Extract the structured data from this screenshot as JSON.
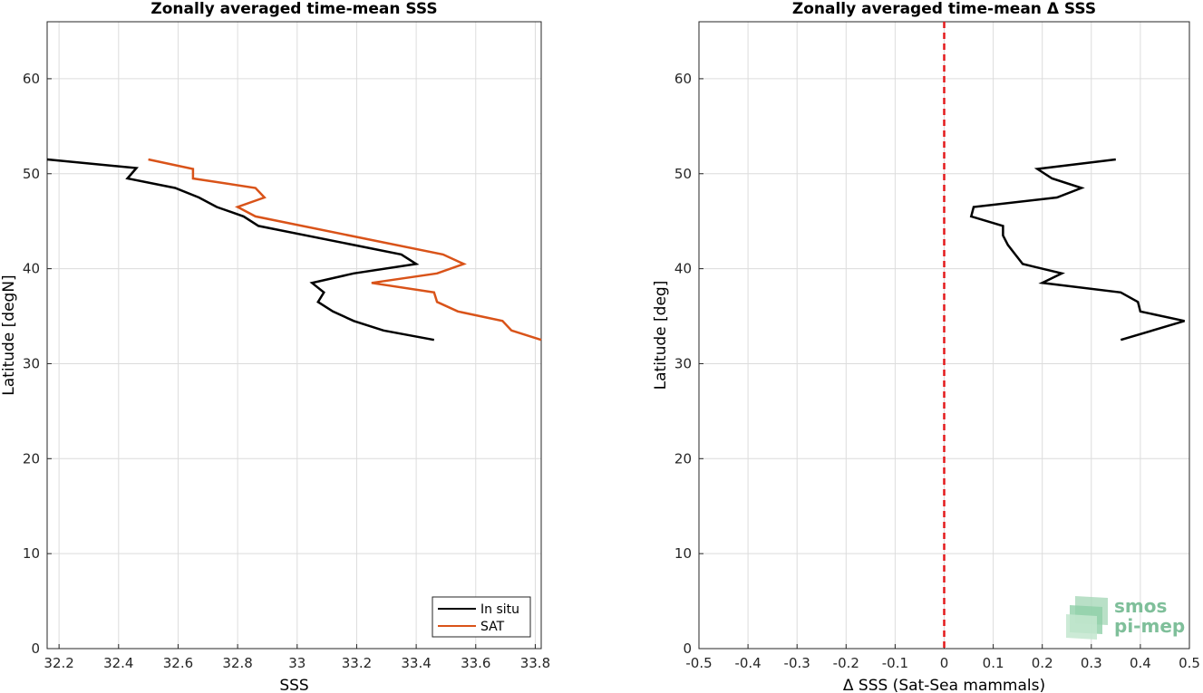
{
  "chart_data": [
    {
      "type": "line",
      "title": "Zonally averaged time-mean SSS",
      "xlabel": "SSS",
      "ylabel": "Latitude [degN]",
      "xlim": [
        32.16,
        33.82
      ],
      "ylim": [
        0,
        66
      ],
      "xticks": [
        32.2,
        32.4,
        32.6,
        32.8,
        33,
        33.2,
        33.4,
        33.6,
        33.8
      ],
      "yticks": [
        0,
        10,
        20,
        30,
        40,
        50,
        60
      ],
      "grid": true,
      "legend_position": "bottom-right",
      "series": [
        {
          "name": "In situ",
          "color": "#000000",
          "points": [
            [
              32.16,
              51.5
            ],
            [
              32.46,
              50.6
            ],
            [
              32.43,
              49.5
            ],
            [
              32.59,
              48.5
            ],
            [
              32.67,
              47.5
            ],
            [
              32.73,
              46.5
            ],
            [
              32.82,
              45.5
            ],
            [
              32.87,
              44.5
            ],
            [
              33.35,
              41.5
            ],
            [
              33.4,
              40.5
            ],
            [
              33.19,
              39.5
            ],
            [
              33.05,
              38.5
            ],
            [
              33.09,
              37.5
            ],
            [
              33.07,
              36.5
            ],
            [
              33.12,
              35.5
            ],
            [
              33.19,
              34.5
            ],
            [
              33.29,
              33.5
            ],
            [
              33.46,
              32.5
            ]
          ]
        },
        {
          "name": "SAT",
          "color": "#d95319",
          "points": [
            [
              32.5,
              51.5
            ],
            [
              32.65,
              50.5
            ],
            [
              32.65,
              49.5
            ],
            [
              32.86,
              48.5
            ],
            [
              32.89,
              47.5
            ],
            [
              32.8,
              46.5
            ],
            [
              32.86,
              45.5
            ],
            [
              33.49,
              41.5
            ],
            [
              33.56,
              40.5
            ],
            [
              33.47,
              39.5
            ],
            [
              33.25,
              38.5
            ],
            [
              33.46,
              37.5
            ],
            [
              33.47,
              36.5
            ],
            [
              33.54,
              35.5
            ],
            [
              33.69,
              34.5
            ],
            [
              33.72,
              33.5
            ],
            [
              33.82,
              32.5
            ]
          ]
        }
      ]
    },
    {
      "type": "line",
      "title": "Zonally averaged time-mean Δ SSS",
      "xlabel": "Δ SSS (Sat-Sea mammals)",
      "ylabel": "Latitude [deg]",
      "xlim": [
        -0.5,
        0.5
      ],
      "ylim": [
        0,
        66
      ],
      "xticks": [
        -0.5,
        -0.4,
        -0.3,
        -0.2,
        -0.1,
        0,
        0.1,
        0.2,
        0.3,
        0.4,
        0.5
      ],
      "yticks": [
        0,
        10,
        20,
        30,
        40,
        50,
        60
      ],
      "grid": true,
      "reference_line": {
        "x": 0,
        "color": "#e41a1c",
        "style": "dashed"
      },
      "series": [
        {
          "color": "#000000",
          "points": [
            [
              0.35,
              51.5
            ],
            [
              0.19,
              50.5
            ],
            [
              0.22,
              49.5
            ],
            [
              0.28,
              48.5
            ],
            [
              0.23,
              47.5
            ],
            [
              0.06,
              46.5
            ],
            [
              0.055,
              45.5
            ],
            [
              0.12,
              44.5
            ],
            [
              0.12,
              43.5
            ],
            [
              0.13,
              42.5
            ],
            [
              0.145,
              41.5
            ],
            [
              0.16,
              40.5
            ],
            [
              0.24,
              39.5
            ],
            [
              0.2,
              38.5
            ],
            [
              0.36,
              37.5
            ],
            [
              0.395,
              36.5
            ],
            [
              0.4,
              35.5
            ],
            [
              0.49,
              34.5
            ],
            [
              0.36,
              32.5
            ]
          ]
        }
      ]
    }
  ],
  "logo": {
    "line1": "smos",
    "line2": "pi-mep"
  }
}
